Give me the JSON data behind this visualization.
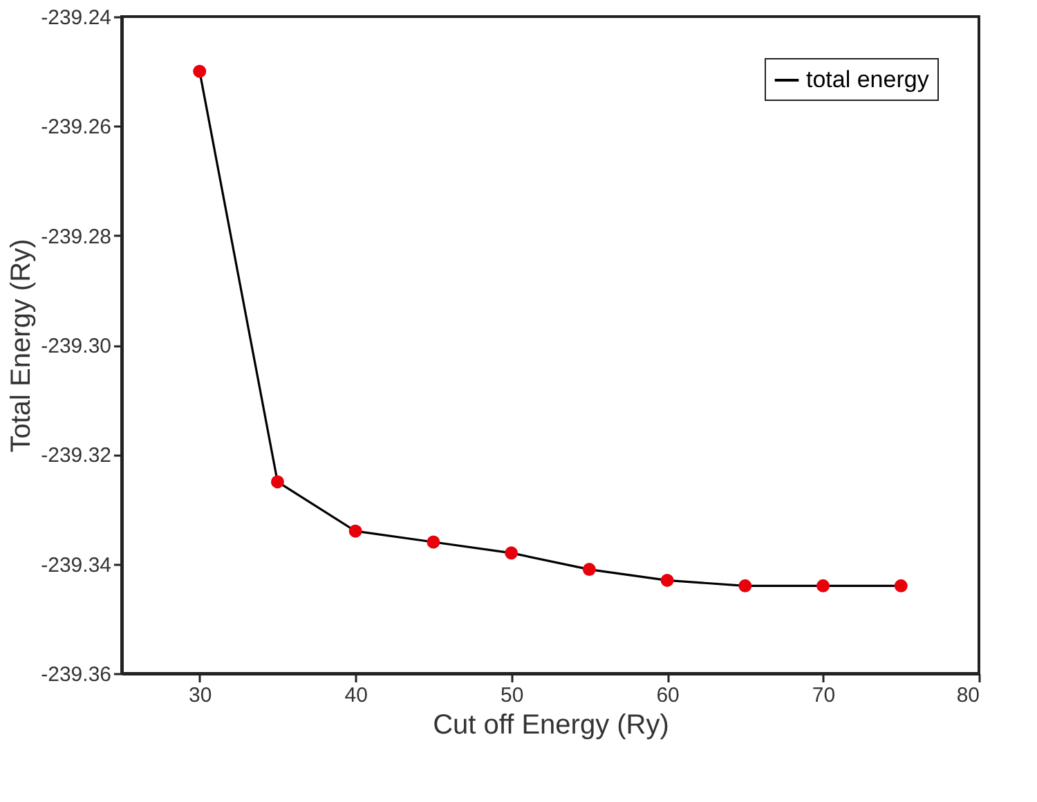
{
  "chart_data": {
    "type": "line",
    "xlabel": "Cut off Energy (Ry)",
    "ylabel": "Total Energy (Ry)",
    "x": [
      30,
      35,
      40,
      45,
      50,
      55,
      60,
      65,
      70,
      75
    ],
    "series": [
      {
        "name": "total energy",
        "color": "#000000",
        "colors": [
          "#e8000b",
          "#e8000b",
          "#e8000b",
          "#e8000b",
          "#e8000b",
          "#e8000b",
          "#e8000b",
          "#e8000b",
          "#e8000b",
          "#e8000b"
        ],
        "values": [
          -239.25,
          -239.325,
          -239.334,
          -239.336,
          -239.338,
          -239.341,
          -239.343,
          -239.344,
          -239.344,
          -239.344
        ]
      }
    ],
    "xlim": [
      25,
      80
    ],
    "xticks": [
      30,
      40,
      50,
      60,
      70,
      80
    ],
    "ylim": [
      -239.36,
      -239.24
    ],
    "yticks": [
      {
        "value": -239.36,
        "label": "-239.36"
      },
      {
        "value": -239.34,
        "label": "-239.34"
      },
      {
        "value": -239.32,
        "label": "-239.32"
      },
      {
        "value": -239.3,
        "label": "-239.30"
      },
      {
        "value": -239.28,
        "label": "-239.28"
      },
      {
        "value": -239.26,
        "label": "-239.26"
      },
      {
        "value": -239.24,
        "label": "-239.24"
      }
    ],
    "grid": false,
    "legend": "top right",
    "marker": "circle",
    "line_style": "solid"
  }
}
